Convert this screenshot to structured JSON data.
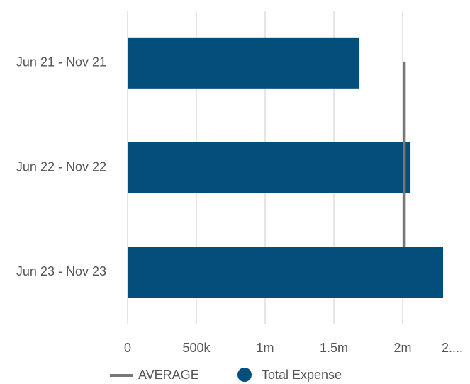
{
  "chart_data": {
    "type": "bar",
    "orientation": "horizontal",
    "categories": [
      "Jun 21 - Nov 21",
      "Jun 22 - Nov 22",
      "Jun 23 - Nov 23"
    ],
    "series": [
      {
        "name": "Total Expense",
        "color": "#044e7c",
        "values": [
          1686000,
          2057000,
          2294000
        ]
      }
    ],
    "average": {
      "name": "AVERAGE",
      "color": "#777777",
      "value": 2012000
    },
    "xlim": [
      0,
      2500000
    ],
    "xticks": [
      0,
      {
        "value": 500000,
        "label": "500k"
      },
      {
        "value": 1000000,
        "label": "1m"
      },
      {
        "value": 1500000,
        "label": "1.5m"
      },
      {
        "value": 2000000,
        "label": "2m"
      },
      {
        "value": 2500000,
        "label": "2...."
      }
    ],
    "grid": true
  }
}
